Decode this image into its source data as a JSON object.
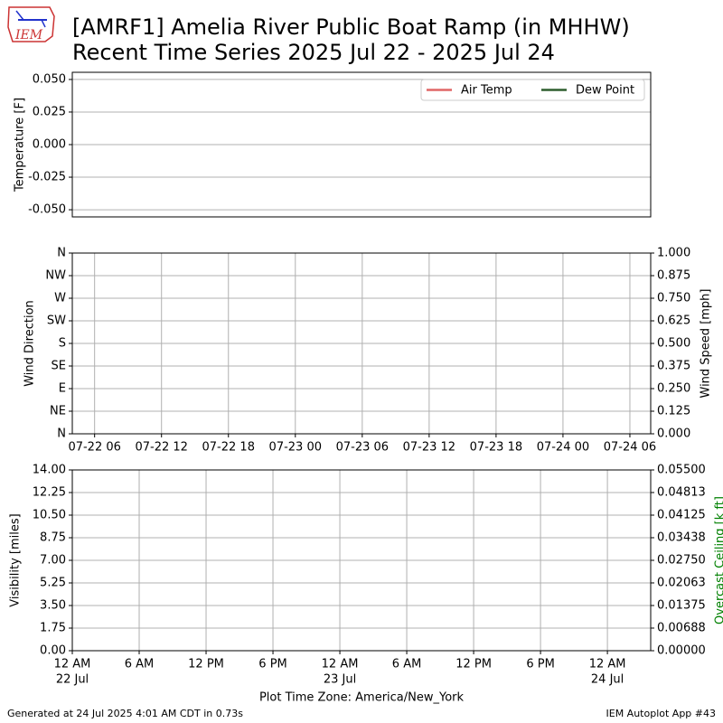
{
  "page": {
    "title": [
      "[AMRF1] Amelia River Public Boat Ramp (in MHHW)",
      "Recent Time Series 2025 Jul 22 - 2025 Jul 24"
    ],
    "logo_text": "IEM",
    "footer_left": "Generated at 24 Jul 2025 4:01 AM CDT in 0.73s",
    "footer_right": "IEM Autoplot App #43"
  },
  "chart_data": [
    {
      "type": "line",
      "ylabel": "Temperature [F]",
      "grid": "y",
      "legend": "upper right",
      "ylim": [
        -0.0555,
        0.0555
      ],
      "yticks": [
        {
          "value": -0.05,
          "label": "-0.050"
        },
        {
          "value": -0.025,
          "label": "-0.025"
        },
        {
          "value": 0,
          "label": "0.000"
        },
        {
          "value": 0.025,
          "label": "0.025"
        },
        {
          "value": 0.05,
          "label": "0.050"
        }
      ],
      "x": [],
      "series": [
        {
          "name": "Air Temp",
          "color": "#e06666",
          "values": []
        },
        {
          "name": "Dew Point",
          "color": "#2e5e2e",
          "values": []
        }
      ]
    },
    {
      "type": "scatter",
      "ylabel": "Wind Direction",
      "y2label": "Wind Speed [mph]",
      "grid": "both",
      "xlim": [
        "2025-07-22T04:00",
        "2025-07-24T07:52"
      ],
      "xticks": [
        {
          "value": "2025-07-22T06:00",
          "label": "07-22 06"
        },
        {
          "value": "2025-07-22T12:00",
          "label": "07-22 12"
        },
        {
          "value": "2025-07-22T18:00",
          "label": "07-22 18"
        },
        {
          "value": "2025-07-23T00:00",
          "label": "07-23 00"
        },
        {
          "value": "2025-07-23T06:00",
          "label": "07-23 06"
        },
        {
          "value": "2025-07-23T12:00",
          "label": "07-23 12"
        },
        {
          "value": "2025-07-23T18:00",
          "label": "07-23 18"
        },
        {
          "value": "2025-07-24T00:00",
          "label": "07-24 00"
        },
        {
          "value": "2025-07-24T06:00",
          "label": "07-24 06"
        }
      ],
      "ylim": [
        0,
        360
      ],
      "yticks": [
        {
          "value": 0,
          "label": "N"
        },
        {
          "value": 45,
          "label": "NE"
        },
        {
          "value": 90,
          "label": "E"
        },
        {
          "value": 135,
          "label": "SE"
        },
        {
          "value": 180,
          "label": "S"
        },
        {
          "value": 225,
          "label": "SW"
        },
        {
          "value": 270,
          "label": "W"
        },
        {
          "value": 315,
          "label": "NW"
        },
        {
          "value": 360,
          "label": "N"
        }
      ],
      "y2lim": [
        0,
        1
      ],
      "y2ticks": [
        {
          "value": 0,
          "label": "0.000"
        },
        {
          "value": 0.125,
          "label": "0.125"
        },
        {
          "value": 0.25,
          "label": "0.250"
        },
        {
          "value": 0.375,
          "label": "0.375"
        },
        {
          "value": 0.5,
          "label": "0.500"
        },
        {
          "value": 0.625,
          "label": "0.625"
        },
        {
          "value": 0.75,
          "label": "0.750"
        },
        {
          "value": 0.875,
          "label": "0.875"
        },
        {
          "value": 1,
          "label": "1.000"
        }
      ]
    },
    {
      "type": "line",
      "ylabel": "Visibility [miles]",
      "y2label": "Overcast Ceiling [k ft]",
      "y2label_color": "#008000",
      "grid": "both",
      "xlabel": "Plot Time Zone: America/New_York",
      "xlim": [
        "2025-07-22T00:00",
        "2025-07-24T03:53"
      ],
      "xticks": [
        {
          "value": "2025-07-22T00:00",
          "label": "12 AM",
          "label2": "22 Jul"
        },
        {
          "value": "2025-07-22T06:00",
          "label": "6 AM"
        },
        {
          "value": "2025-07-22T12:00",
          "label": "12 PM"
        },
        {
          "value": "2025-07-22T18:00",
          "label": "6 PM"
        },
        {
          "value": "2025-07-23T00:00",
          "label": "12 AM",
          "label2": "23 Jul"
        },
        {
          "value": "2025-07-23T06:00",
          "label": "6 AM"
        },
        {
          "value": "2025-07-23T12:00",
          "label": "12 PM"
        },
        {
          "value": "2025-07-23T18:00",
          "label": "6 PM"
        },
        {
          "value": "2025-07-24T00:00",
          "label": "12 AM",
          "label2": "24 Jul"
        }
      ],
      "ylim": [
        0,
        14
      ],
      "yticks": [
        {
          "value": 0,
          "label": "0.00"
        },
        {
          "value": 1.75,
          "label": "1.75"
        },
        {
          "value": 3.5,
          "label": "3.50"
        },
        {
          "value": 5.25,
          "label": "5.25"
        },
        {
          "value": 7,
          "label": "7.00"
        },
        {
          "value": 8.75,
          "label": "8.75"
        },
        {
          "value": 10.5,
          "label": "10.50"
        },
        {
          "value": 12.25,
          "label": "12.25"
        },
        {
          "value": 14,
          "label": "14.00"
        }
      ],
      "y2lim": [
        0,
        0.055
      ],
      "y2ticks": [
        {
          "value": 0,
          "label": "0.00000"
        },
        {
          "value": 0.00688,
          "label": "0.00688"
        },
        {
          "value": 0.01375,
          "label": "0.01375"
        },
        {
          "value": 0.02063,
          "label": "0.02063"
        },
        {
          "value": 0.0275,
          "label": "0.02750"
        },
        {
          "value": 0.03438,
          "label": "0.03438"
        },
        {
          "value": 0.04125,
          "label": "0.04125"
        },
        {
          "value": 0.04813,
          "label": "0.04813"
        },
        {
          "value": 0.055,
          "label": "0.05500"
        }
      ]
    }
  ]
}
